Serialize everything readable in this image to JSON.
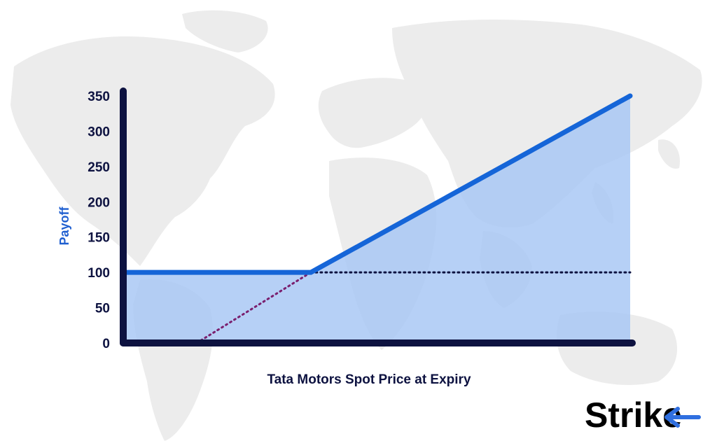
{
  "chart_data": {
    "type": "line",
    "title": "",
    "xlabel": "Tata Motors Spot Price at Expiry",
    "ylabel": "Payoff",
    "ylim": [
      0,
      350
    ],
    "yticks": [
      0,
      50,
      100,
      150,
      200,
      250,
      300,
      350
    ],
    "x_tick_labels_shown": false,
    "grid": false,
    "legend": "none",
    "series": [
      {
        "role": "payoff",
        "style": "solid",
        "fill_below": true,
        "points": [
          [
            0,
            100
          ],
          [
            0.37,
            100
          ],
          [
            1.0,
            350
          ]
        ]
      },
      {
        "role": "reference-diagonal",
        "style": "dotted",
        "points": [
          [
            0.145,
            0
          ],
          [
            0.37,
            100
          ]
        ]
      },
      {
        "role": "reference-level",
        "style": "dotted",
        "points": [
          [
            0.37,
            100
          ],
          [
            1.0,
            100
          ]
        ]
      }
    ],
    "colors": {
      "payoff_line": "#1565d8",
      "fill": "#a9c8f5",
      "axes": "#0d1240",
      "diagonal_dots": "#7a1f6e",
      "level_dots": "#0d1240",
      "ylabel": "#1f5fd0",
      "map": "#ececec",
      "logo_arrow": "#2f6fe0"
    }
  },
  "logo": {
    "text": "Strike",
    "icon": "arrow-left-icon"
  }
}
